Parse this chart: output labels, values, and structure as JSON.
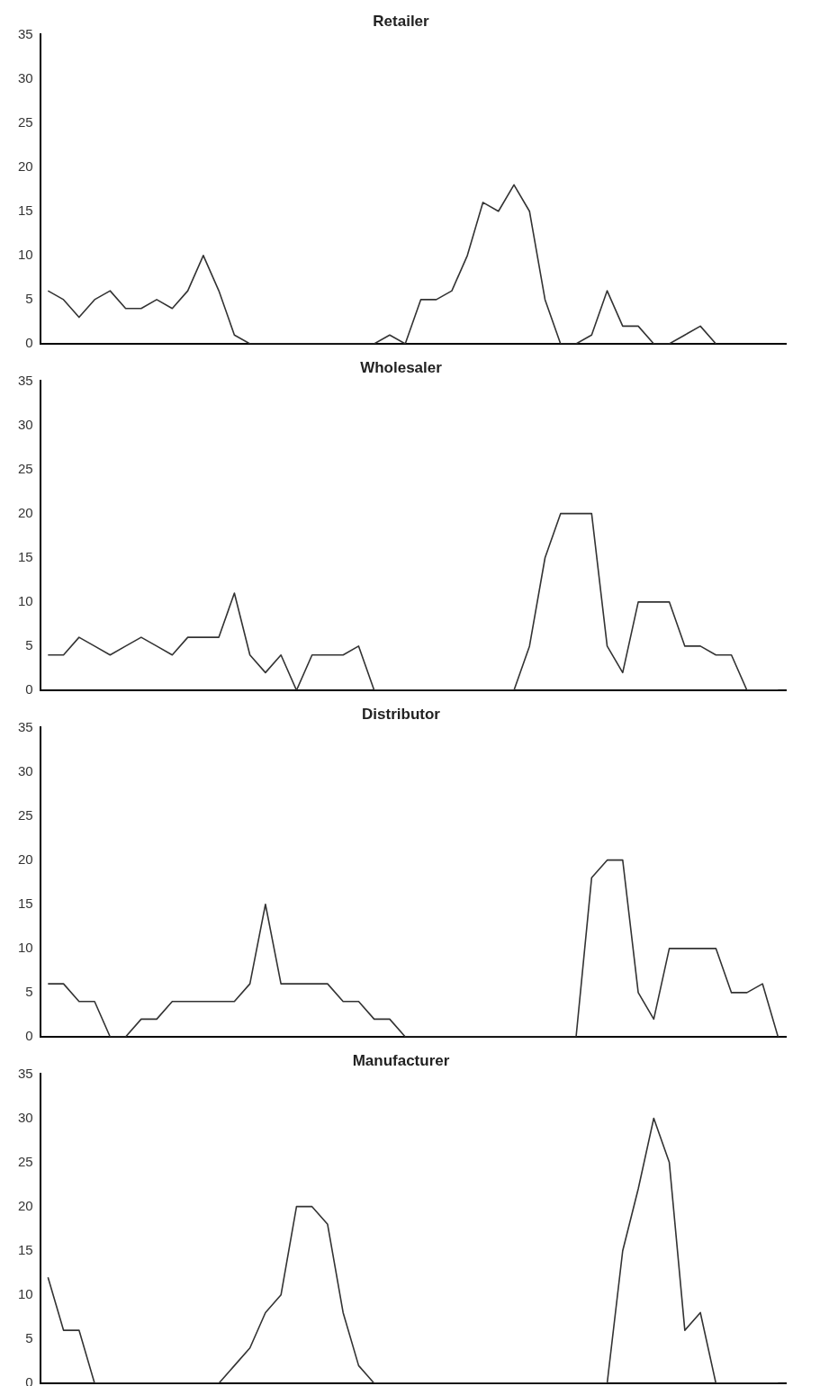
{
  "chart_data": [
    {
      "type": "line",
      "title": "Retailer",
      "categories": [
        null,
        null,
        null,
        null,
        null,
        null,
        null,
        null,
        null,
        null,
        null,
        null,
        null,
        null,
        null,
        null,
        null,
        null,
        null,
        null,
        null,
        null,
        null,
        null,
        null,
        null,
        null,
        null,
        null,
        null,
        null,
        null,
        null,
        null,
        null,
        null,
        null,
        null,
        null,
        null,
        null,
        null,
        null,
        null,
        null,
        null,
        null,
        null
      ],
      "series": [
        {
          "color": "#333333",
          "values": [
            6,
            5,
            3,
            5,
            6,
            4,
            4,
            5,
            4,
            6,
            10,
            6,
            1,
            0,
            0,
            0,
            0,
            0,
            0,
            0,
            0,
            0,
            1,
            0,
            5,
            5,
            6,
            10,
            16,
            15,
            18,
            15,
            5,
            0,
            0,
            1,
            6,
            2,
            2,
            0,
            0,
            1,
            2,
            0,
            null,
            null,
            null,
            null
          ]
        }
      ],
      "ylim": [
        0,
        35
      ],
      "yticks": [
        0,
        5,
        10,
        15,
        20,
        25,
        30,
        35
      ],
      "tick_labels": "y",
      "grid": false,
      "legend": false,
      "marker": "none",
      "line_style": "solid"
    },
    {
      "type": "line",
      "title": "Wholesaler",
      "categories": [
        null,
        null,
        null,
        null,
        null,
        null,
        null,
        null,
        null,
        null,
        null,
        null,
        null,
        null,
        null,
        null,
        null,
        null,
        null,
        null,
        null,
        null,
        null,
        null,
        null,
        null,
        null,
        null,
        null,
        null,
        null,
        null,
        null,
        null,
        null,
        null,
        null,
        null,
        null,
        null,
        null,
        null,
        null,
        null,
        null,
        null,
        null,
        null
      ],
      "series": [
        {
          "color": "#333333",
          "values": [
            4,
            4,
            6,
            5,
            4,
            5,
            6,
            5,
            4,
            6,
            6,
            6,
            11,
            4,
            2,
            4,
            0,
            4,
            4,
            4,
            5,
            0,
            0,
            0,
            0,
            0,
            0,
            0,
            0,
            0,
            0,
            5,
            15,
            20,
            20,
            20,
            5,
            2,
            10,
            10,
            10,
            5,
            5,
            4,
            4,
            0,
            0,
            0
          ]
        }
      ],
      "ylim": [
        0,
        35
      ],
      "yticks": [
        0,
        5,
        10,
        15,
        20,
        25,
        30,
        35
      ],
      "tick_labels": "y",
      "grid": false,
      "legend": false,
      "marker": "none",
      "line_style": "solid"
    },
    {
      "type": "line",
      "title": "Distributor",
      "categories": [
        null,
        null,
        null,
        null,
        null,
        null,
        null,
        null,
        null,
        null,
        null,
        null,
        null,
        null,
        null,
        null,
        null,
        null,
        null,
        null,
        null,
        null,
        null,
        null,
        null,
        null,
        null,
        null,
        null,
        null,
        null,
        null,
        null,
        null,
        null,
        null,
        null,
        null,
        null,
        null,
        null,
        null,
        null,
        null,
        null,
        null,
        null,
        null
      ],
      "series": [
        {
          "color": "#333333",
          "values": [
            6,
            6,
            4,
            4,
            0,
            0,
            2,
            2,
            4,
            4,
            4,
            4,
            4,
            6,
            15,
            6,
            6,
            6,
            6,
            4,
            4,
            2,
            2,
            0,
            0,
            0,
            0,
            0,
            0,
            0,
            0,
            0,
            0,
            0,
            0,
            18,
            20,
            20,
            5,
            2,
            10,
            10,
            10,
            10,
            5,
            5,
            6,
            0
          ]
        }
      ],
      "ylim": [
        0,
        35
      ],
      "yticks": [
        0,
        5,
        10,
        15,
        20,
        25,
        30,
        35
      ],
      "tick_labels": "y",
      "grid": false,
      "legend": false,
      "marker": "none",
      "line_style": "solid"
    },
    {
      "type": "line",
      "title": "Manufacturer",
      "categories": [
        null,
        null,
        null,
        null,
        null,
        null,
        null,
        null,
        null,
        null,
        null,
        null,
        null,
        null,
        null,
        null,
        null,
        null,
        null,
        null,
        null,
        null,
        null,
        null,
        null,
        null,
        null,
        null,
        null,
        null,
        null,
        null,
        null,
        null,
        null,
        null,
        null,
        null,
        null,
        null,
        null,
        null,
        null,
        null,
        null,
        null,
        null,
        null
      ],
      "series": [
        {
          "color": "#333333",
          "values": [
            12,
            6,
            6,
            0,
            0,
            0,
            0,
            0,
            0,
            0,
            0,
            0,
            2,
            4,
            8,
            10,
            20,
            20,
            18,
            8,
            2,
            0,
            0,
            0,
            0,
            0,
            0,
            0,
            0,
            0,
            0,
            0,
            0,
            0,
            0,
            0,
            0,
            15,
            22,
            30,
            25,
            6,
            8,
            0,
            0,
            0,
            0,
            0
          ]
        }
      ],
      "ylim": [
        0,
        35
      ],
      "yticks": [
        0,
        5,
        10,
        15,
        20,
        25,
        30,
        35
      ],
      "tick_labels": "y",
      "grid": false,
      "legend": false,
      "marker": "none",
      "line_style": "solid"
    }
  ]
}
